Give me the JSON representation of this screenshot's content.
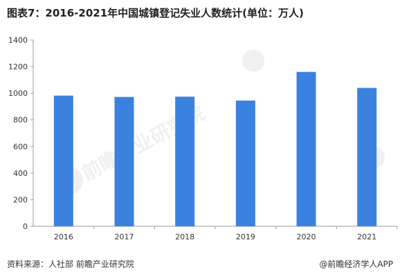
{
  "title": "图表7：2016-2021年中国城镇登记失业人数统计(单位：万人)",
  "footer": {
    "source": "资料来源：人社部 前瞻产业研究院",
    "copyright": "@前瞻经济学人APP"
  },
  "watermark": {
    "text": "前瞻产业研究院",
    "logo_text": "前瞻"
  },
  "colors": {
    "bar": "#3b82e0",
    "axis": "#9a9a9a",
    "text": "#333333"
  },
  "chart_data": {
    "type": "bar",
    "categories": [
      "2016",
      "2017",
      "2018",
      "2019",
      "2020",
      "2021"
    ],
    "values": [
      982,
      972,
      974,
      945,
      1160,
      1040
    ],
    "ylim": [
      0,
      1400
    ],
    "yticks": [
      0,
      200,
      400,
      600,
      800,
      1000,
      1200,
      1400
    ],
    "grid": false,
    "legend": "none"
  }
}
